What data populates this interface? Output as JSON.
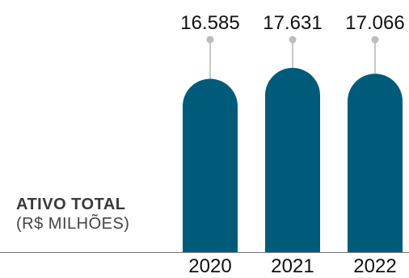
{
  "chart_data": {
    "type": "bar",
    "categories": [
      "2020",
      "2021",
      "2022"
    ],
    "values": [
      16585,
      17631,
      17066
    ],
    "value_labels": [
      "16.585",
      "17.631",
      "17.066"
    ],
    "title": "ATIVO TOTAL",
    "unit_label": "(R$ MILHÕES)",
    "grid": false,
    "colors": {
      "bar": "#005a7a",
      "connector": "#c8c8c8",
      "marker": "#bcbcbc",
      "text": "#111111",
      "axis": "#777777"
    }
  }
}
